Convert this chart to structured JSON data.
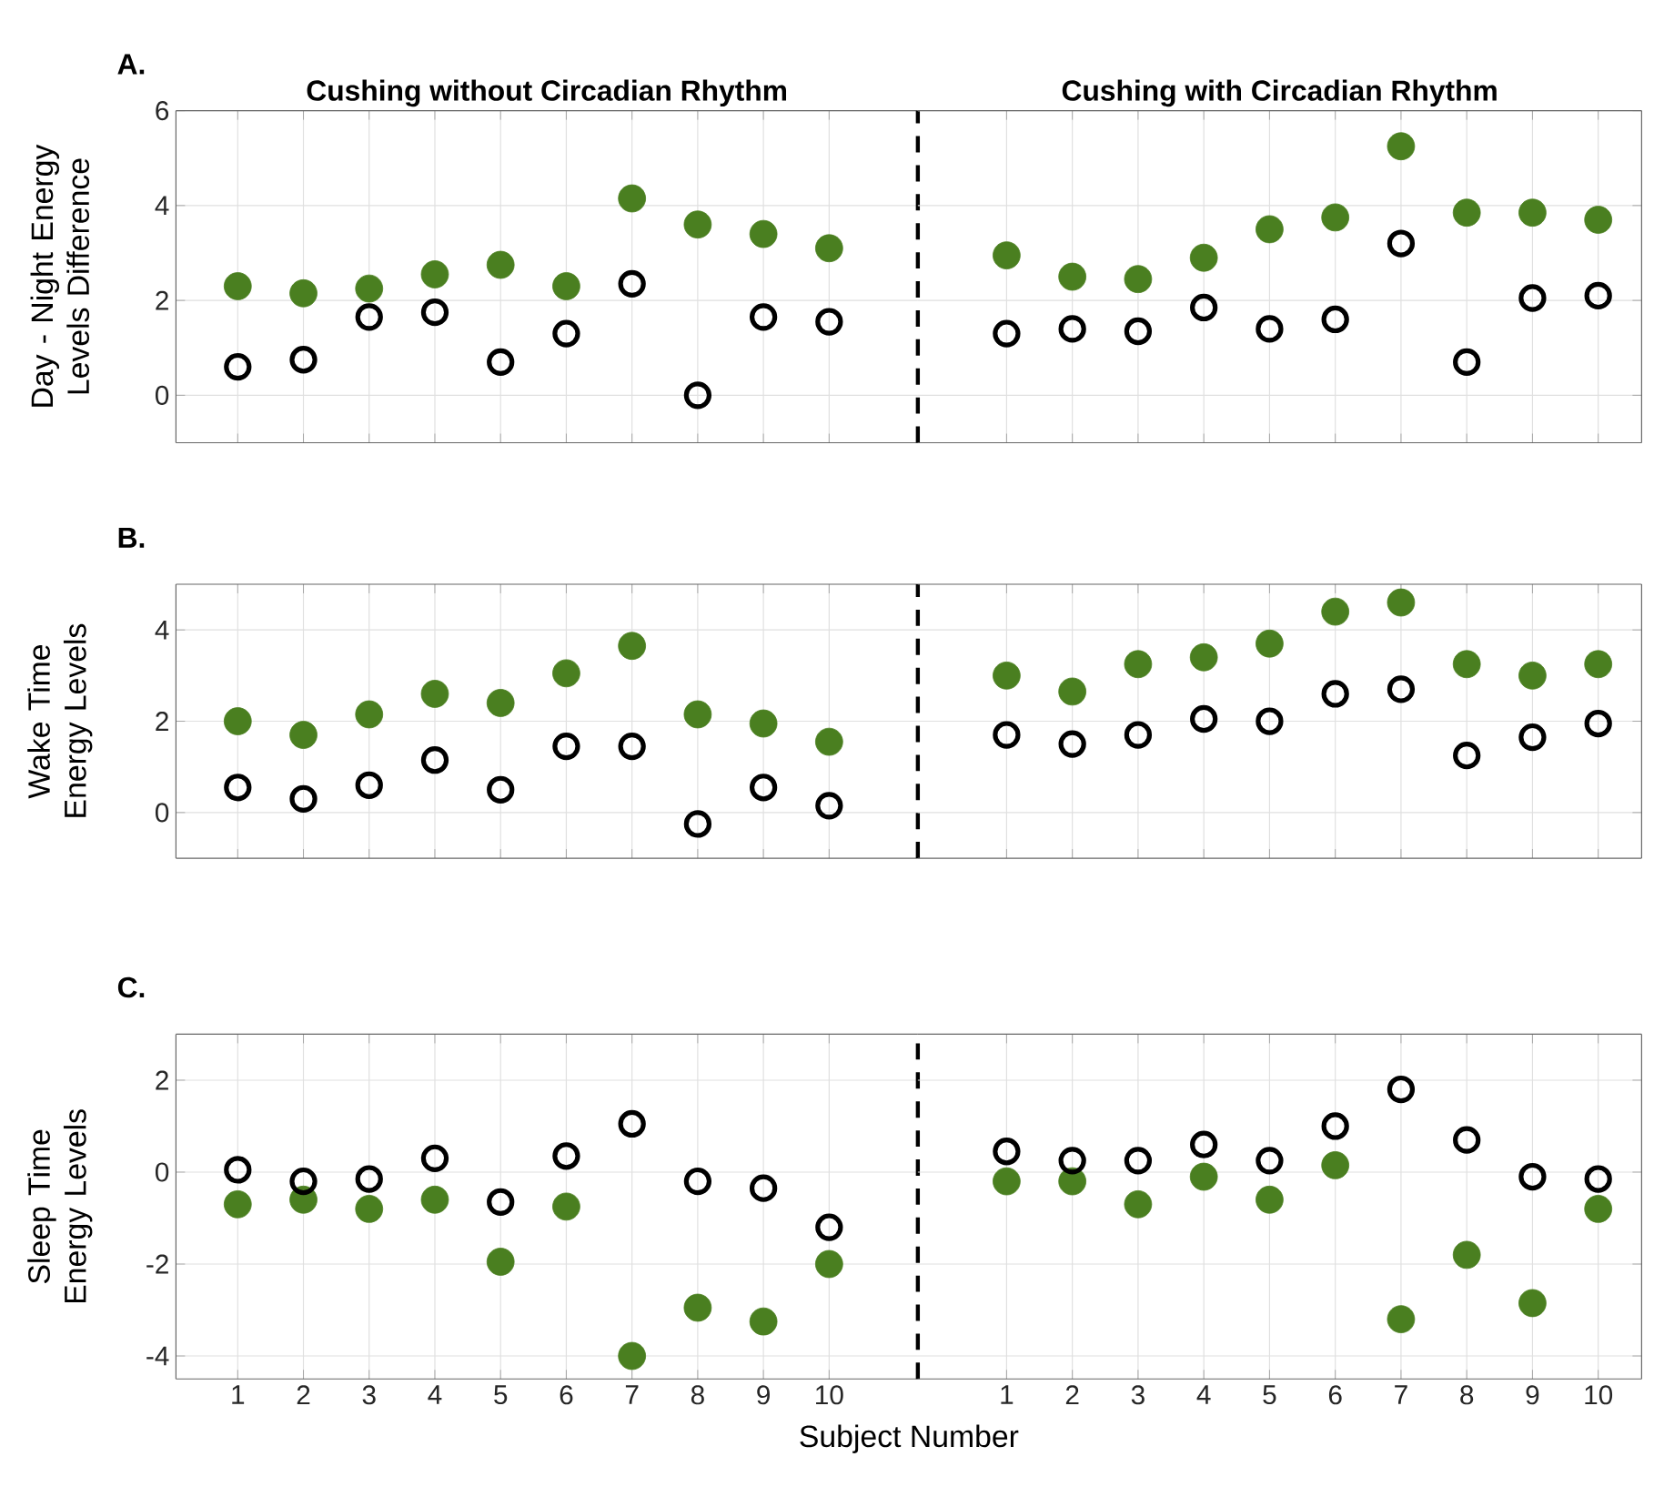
{
  "chart_data": [
    {
      "type": "scatter",
      "title": "A.",
      "ylabel": "Day - Night Energy Levels Difference",
      "annotations": [
        "Cushing without Circadian Rhythm"
      ],
      "xlim": [
        0.06,
        11.35
      ],
      "xticks": [
        1,
        2,
        3,
        4,
        5,
        6,
        7,
        8,
        9,
        10
      ],
      "ylim": [
        -1,
        6
      ],
      "yticks": [
        0,
        2,
        4,
        6
      ],
      "grid": true,
      "tick_labels": "y",
      "marker": "circle",
      "ref_lines": [
        {
          "axis": "x",
          "value": 11.35,
          "color": "#000000",
          "line_style": "dashed"
        }
      ],
      "x": [
        1,
        2,
        3,
        4,
        5,
        6,
        7,
        8,
        9,
        10
      ],
      "series": [
        {
          "color": "#4a7f20",
          "values": [
            2.3,
            2.15,
            2.25,
            2.55,
            2.75,
            2.3,
            4.15,
            3.6,
            3.4,
            3.1
          ]
        },
        {
          "color": "#000000",
          "values": [
            0.6,
            0.75,
            1.65,
            1.75,
            0.7,
            1.3,
            2.35,
            0.0,
            1.65,
            1.55
          ]
        }
      ]
    },
    {
      "type": "scatter",
      "annotations": [
        "Cushing with Circadian Rhythm"
      ],
      "xlim": [
        -0.35,
        10.66
      ],
      "xticks": [
        1,
        2,
        3,
        4,
        5,
        6,
        7,
        8,
        9,
        10
      ],
      "ylim": [
        -1,
        6
      ],
      "yticks": [
        0,
        2,
        4,
        6
      ],
      "grid": true,
      "tick_labels": false,
      "marker": "circle",
      "x": [
        1,
        2,
        3,
        4,
        5,
        6,
        7,
        8,
        9,
        10
      ],
      "series": [
        {
          "color": "#4a7f20",
          "values": [
            2.95,
            2.5,
            2.45,
            2.9,
            3.5,
            3.75,
            5.25,
            3.85,
            3.85,
            3.7
          ]
        },
        {
          "color": "#000000",
          "values": [
            1.3,
            1.4,
            1.35,
            1.85,
            1.4,
            1.6,
            3.2,
            0.7,
            2.05,
            2.1
          ]
        }
      ]
    },
    {
      "type": "scatter",
      "title": "B.",
      "ylabel": "Wake Time Energy Levels",
      "xlim": [
        0.06,
        11.35
      ],
      "xticks": [
        1,
        2,
        3,
        4,
        5,
        6,
        7,
        8,
        9,
        10
      ],
      "ylim": [
        -1,
        5
      ],
      "yticks": [
        0,
        2,
        4
      ],
      "grid": true,
      "tick_labels": "y",
      "marker": "circle",
      "ref_lines": [
        {
          "axis": "x",
          "value": 11.35,
          "color": "#000000",
          "line_style": "dashed"
        }
      ],
      "x": [
        1,
        2,
        3,
        4,
        5,
        6,
        7,
        8,
        9,
        10
      ],
      "series": [
        {
          "color": "#4a7f20",
          "values": [
            2.0,
            1.7,
            2.15,
            2.6,
            2.4,
            3.05,
            3.65,
            2.15,
            1.95,
            1.55
          ]
        },
        {
          "color": "#000000",
          "values": [
            0.55,
            0.3,
            0.6,
            1.15,
            0.5,
            1.45,
            1.45,
            -0.25,
            0.55,
            0.15
          ]
        }
      ]
    },
    {
      "type": "scatter",
      "xlim": [
        -0.35,
        10.66
      ],
      "xticks": [
        1,
        2,
        3,
        4,
        5,
        6,
        7,
        8,
        9,
        10
      ],
      "ylim": [
        -1,
        5
      ],
      "yticks": [
        0,
        2,
        4
      ],
      "grid": true,
      "tick_labels": false,
      "marker": "circle",
      "x": [
        1,
        2,
        3,
        4,
        5,
        6,
        7,
        8,
        9,
        10
      ],
      "series": [
        {
          "color": "#4a7f20",
          "values": [
            3.0,
            2.65,
            3.25,
            3.4,
            3.7,
            4.4,
            4.6,
            3.25,
            3.0,
            3.25
          ]
        },
        {
          "color": "#000000",
          "values": [
            1.7,
            1.5,
            1.7,
            2.05,
            2.0,
            2.6,
            2.7,
            1.25,
            1.65,
            1.95
          ]
        }
      ]
    },
    {
      "type": "scatter",
      "title": "C.",
      "ylabel": "Sleep Time Energy Levels",
      "xlabel": "Subject Number",
      "xlim": [
        0.06,
        11.35
      ],
      "xticks": [
        1,
        2,
        3,
        4,
        5,
        6,
        7,
        8,
        9,
        10
      ],
      "ylim": [
        -4.5,
        3
      ],
      "yticks": [
        -4,
        -2,
        0,
        2
      ],
      "grid": true,
      "marker": "circle",
      "ref_lines": [
        {
          "axis": "x",
          "value": 11.35,
          "color": "#000000",
          "line_style": "dashed"
        }
      ],
      "x": [
        1,
        2,
        3,
        4,
        5,
        6,
        7,
        8,
        9,
        10
      ],
      "series": [
        {
          "color": "#4a7f20",
          "values": [
            -0.7,
            -0.6,
            -0.8,
            -0.6,
            -1.95,
            -0.75,
            -4.0,
            -2.95,
            -3.25,
            -2.0
          ]
        },
        {
          "color": "#000000",
          "values": [
            0.05,
            -0.2,
            -0.15,
            0.3,
            -0.65,
            0.35,
            1.05,
            -0.2,
            -0.35,
            -1.2
          ]
        }
      ]
    },
    {
      "type": "scatter",
      "xlim": [
        -0.35,
        10.66
      ],
      "xticks": [
        1,
        2,
        3,
        4,
        5,
        6,
        7,
        8,
        9,
        10
      ],
      "ylim": [
        -4.5,
        3
      ],
      "yticks": [
        -4,
        -2,
        0,
        2
      ],
      "grid": true,
      "tick_labels": "x",
      "marker": "circle",
      "x": [
        1,
        2,
        3,
        4,
        5,
        6,
        7,
        8,
        9,
        10
      ],
      "series": [
        {
          "color": "#4a7f20",
          "values": [
            -0.2,
            -0.2,
            -0.7,
            -0.1,
            -0.6,
            0.15,
            -3.2,
            -1.8,
            -2.85,
            -0.8
          ]
        },
        {
          "color": "#000000",
          "values": [
            0.45,
            0.25,
            0.25,
            0.6,
            0.25,
            1.0,
            1.8,
            0.7,
            -0.1,
            -0.15
          ]
        }
      ]
    }
  ]
}
